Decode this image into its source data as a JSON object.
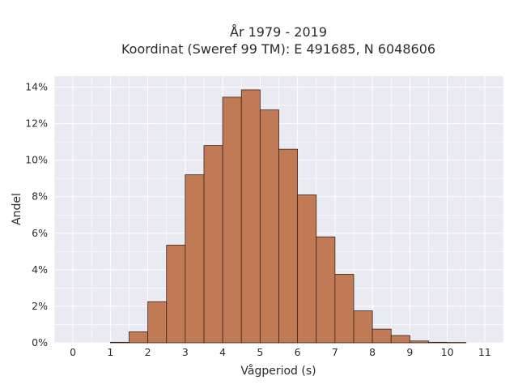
{
  "chart_data": {
    "type": "bar",
    "title_line1": "År 1979 - 2019",
    "title_line2": "Koordinat (Sweref 99 TM): E 491685, N 6048606",
    "xlabel": "Vågperiod (s)",
    "ylabel": "Andel",
    "xlim": [
      -0.5,
      11.5
    ],
    "ylim": [
      0,
      14.6
    ],
    "x_ticks": [
      0,
      1,
      2,
      3,
      4,
      5,
      6,
      7,
      8,
      9,
      10,
      11
    ],
    "y_ticks": [
      0,
      2,
      4,
      6,
      8,
      10,
      12,
      14
    ],
    "y_tick_labels": [
      "0%",
      "2%",
      "4%",
      "6%",
      "8%",
      "10%",
      "12%",
      "14%"
    ],
    "bin_width": 0.5,
    "bins": [
      {
        "start": 1.0,
        "value": 0.03
      },
      {
        "start": 1.5,
        "value": 0.6
      },
      {
        "start": 2.0,
        "value": 2.25
      },
      {
        "start": 2.5,
        "value": 5.35
      },
      {
        "start": 3.0,
        "value": 9.2
      },
      {
        "start": 3.5,
        "value": 10.8
      },
      {
        "start": 4.0,
        "value": 13.45
      },
      {
        "start": 4.5,
        "value": 13.85
      },
      {
        "start": 5.0,
        "value": 12.75
      },
      {
        "start": 5.5,
        "value": 10.6
      },
      {
        "start": 6.0,
        "value": 8.1
      },
      {
        "start": 6.5,
        "value": 5.8
      },
      {
        "start": 7.0,
        "value": 3.75
      },
      {
        "start": 7.5,
        "value": 1.75
      },
      {
        "start": 8.0,
        "value": 0.75
      },
      {
        "start": 8.5,
        "value": 0.4
      },
      {
        "start": 9.0,
        "value": 0.1
      },
      {
        "start": 9.5,
        "value": 0.03
      },
      {
        "start": 10.0,
        "value": 0.02
      }
    ],
    "grid": true,
    "colors": {
      "bar_fill": "#c07a55",
      "bar_edge": "#3b2418",
      "plot_bg": "#eaeaf2",
      "grid": "#ffffff"
    }
  }
}
